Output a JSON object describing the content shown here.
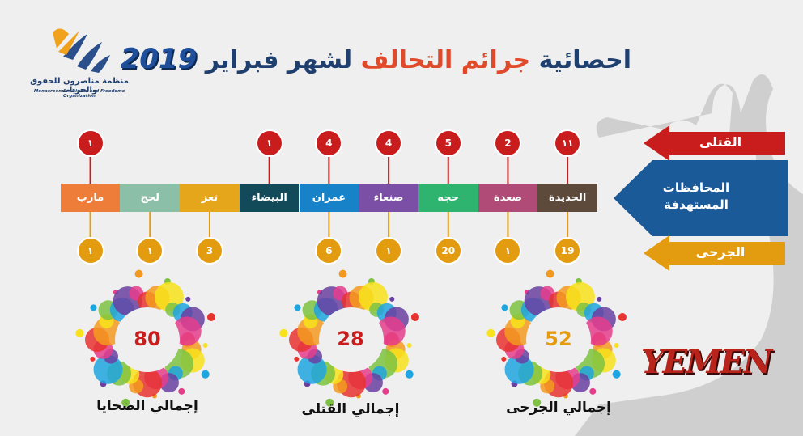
{
  "title": {
    "part1": "احصائية",
    "part2": "جرائم التحالف",
    "part3": "لشهر فبراير",
    "year": "2019"
  },
  "logo": {
    "name_ar": "منظمة مناصرون للحقوق والحريات",
    "name_en": "Monasroon for Rights and Freedoms Organization"
  },
  "legend": {
    "killed": "القتلى",
    "targeted": "المحافظات المستهدفة",
    "injured": "الجرحى"
  },
  "colors": {
    "killed": "#c91d1d",
    "injured": "#e39c10",
    "accent_blue": "#1b5a99"
  },
  "chart_data": {
    "type": "table",
    "categories": [
      "الحديدة",
      "صعدة",
      "حجه",
      "صنعاء",
      "عمران",
      "البيضاء",
      "تعز",
      "لحج",
      "مارب"
    ],
    "series": [
      {
        "name": "القتلى",
        "values": [
          "١١",
          "2",
          "5",
          "4",
          "4",
          "١",
          "",
          "",
          "١"
        ]
      },
      {
        "name": "الجرحى",
        "values": [
          "19",
          "١",
          "20",
          "١",
          "6",
          "",
          "3",
          "١",
          "١"
        ]
      }
    ],
    "segment_colors": [
      "#5e4a3a",
      "#b04a76",
      "#2fb46f",
      "#7c4fa6",
      "#1782c7",
      "#124a59",
      "#e6a61c",
      "#8cbfa8",
      "#ef7d3a"
    ]
  },
  "totals": [
    {
      "value": "52",
      "label": "إجمالي الجرحى",
      "color": "#e39c10"
    },
    {
      "value": "28",
      "label": "إجمالي القتلى",
      "color": "#c91d1d"
    },
    {
      "value": "80",
      "label": "إجمالي الضحايا",
      "color": "#c91d1d"
    }
  ],
  "country": "YEMEN"
}
